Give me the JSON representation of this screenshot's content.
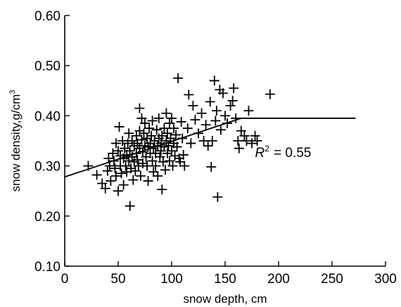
{
  "chart_data": {
    "type": "scatter",
    "xlabel": "snow depth, cm",
    "ylabel_main": "snow density,g/cm",
    "ylabel_sup": "3",
    "xlim": [
      0,
      300
    ],
    "ylim": [
      0.1,
      0.6
    ],
    "x_ticks": [
      0,
      50,
      100,
      150,
      200,
      250,
      300
    ],
    "x_tick_labels": [
      "0",
      "50",
      "100",
      "150",
      "200",
      "250",
      "300"
    ],
    "y_ticks": [
      0.1,
      0.2,
      0.3,
      0.4,
      0.5,
      0.6
    ],
    "y_tick_labels": [
      "0.10",
      "0.20",
      "0.30",
      "0.40",
      "0.50",
      "0.60"
    ],
    "grid": false,
    "marker": "plus",
    "annotation": {
      "r_label": "R",
      "r_sup": "2",
      "r_value": "= 0.55",
      "x": 178,
      "y": 0.318
    },
    "fit_line": {
      "type": "piecewise-linear",
      "points": [
        [
          0,
          0.278
        ],
        [
          165,
          0.395
        ],
        [
          272,
          0.395
        ]
      ]
    },
    "points": [
      [
        22,
        0.3
      ],
      [
        30,
        0.282
      ],
      [
        35,
        0.265
      ],
      [
        38,
        0.255
      ],
      [
        40,
        0.29
      ],
      [
        41,
        0.315
      ],
      [
        42,
        0.3
      ],
      [
        43,
        0.27
      ],
      [
        45,
        0.325
      ],
      [
        46,
        0.31
      ],
      [
        47,
        0.295
      ],
      [
        48,
        0.28
      ],
      [
        48,
        0.345
      ],
      [
        50,
        0.25
      ],
      [
        50,
        0.33
      ],
      [
        51,
        0.378
      ],
      [
        52,
        0.32
      ],
      [
        52,
        0.3
      ],
      [
        53,
        0.285
      ],
      [
        54,
        0.35
      ],
      [
        55,
        0.315
      ],
      [
        55,
        0.262
      ],
      [
        56,
        0.335
      ],
      [
        57,
        0.3
      ],
      [
        58,
        0.322
      ],
      [
        58,
        0.288
      ],
      [
        59,
        0.345
      ],
      [
        60,
        0.31
      ],
      [
        60,
        0.365
      ],
      [
        61,
        0.22
      ],
      [
        61,
        0.33
      ],
      [
        62,
        0.295
      ],
      [
        63,
        0.318
      ],
      [
        63,
        0.35
      ],
      [
        64,
        0.272
      ],
      [
        65,
        0.34
      ],
      [
        65,
        0.308
      ],
      [
        66,
        0.29
      ],
      [
        67,
        0.36
      ],
      [
        67,
        0.325
      ],
      [
        68,
        0.345
      ],
      [
        68,
        0.312
      ],
      [
        69,
        0.3
      ],
      [
        70,
        0.335
      ],
      [
        70,
        0.37
      ],
      [
        70,
        0.415
      ],
      [
        71,
        0.28
      ],
      [
        72,
        0.352
      ],
      [
        72,
        0.395
      ],
      [
        73,
        0.328
      ],
      [
        73,
        0.305
      ],
      [
        74,
        0.365
      ],
      [
        75,
        0.34
      ],
      [
        75,
        0.385
      ],
      [
        76,
        0.318
      ],
      [
        77,
        0.3
      ],
      [
        77,
        0.355
      ],
      [
        78,
        0.338
      ],
      [
        78,
        0.27
      ],
      [
        79,
        0.375
      ],
      [
        80,
        0.325
      ],
      [
        80,
        0.345
      ],
      [
        81,
        0.36
      ],
      [
        82,
        0.31
      ],
      [
        82,
        0.39
      ],
      [
        83,
        0.335
      ],
      [
        83,
        0.288
      ],
      [
        84,
        0.35
      ],
      [
        85,
        0.325
      ],
      [
        85,
        0.3
      ],
      [
        86,
        0.372
      ],
      [
        87,
        0.34
      ],
      [
        87,
        0.28
      ],
      [
        88,
        0.355
      ],
      [
        88,
        0.395
      ],
      [
        89,
        0.318
      ],
      [
        90,
        0.345
      ],
      [
        90,
        0.33
      ],
      [
        91,
        0.36
      ],
      [
        91,
        0.253
      ],
      [
        92,
        0.308
      ],
      [
        93,
        0.375
      ],
      [
        93,
        0.338
      ],
      [
        94,
        0.292
      ],
      [
        95,
        0.35
      ],
      [
        95,
        0.405
      ],
      [
        96,
        0.325
      ],
      [
        96,
        0.365
      ],
      [
        97,
        0.34
      ],
      [
        98,
        0.31
      ],
      [
        98,
        0.385
      ],
      [
        99,
        0.355
      ],
      [
        100,
        0.395
      ],
      [
        100,
        0.33
      ],
      [
        101,
        0.3
      ],
      [
        102,
        0.375
      ],
      [
        102,
        0.345
      ],
      [
        103,
        0.32
      ],
      [
        104,
        0.362
      ],
      [
        105,
        0.338
      ],
      [
        106,
        0.475
      ],
      [
        107,
        0.315
      ],
      [
        108,
        0.308
      ],
      [
        109,
        0.388
      ],
      [
        110,
        0.355
      ],
      [
        111,
        0.322
      ],
      [
        112,
        0.3
      ],
      [
        115,
        0.375
      ],
      [
        116,
        0.442
      ],
      [
        118,
        0.345
      ],
      [
        120,
        0.42
      ],
      [
        122,
        0.392
      ],
      [
        125,
        0.365
      ],
      [
        128,
        0.405
      ],
      [
        130,
        0.35
      ],
      [
        132,
        0.382
      ],
      [
        134,
        0.34
      ],
      [
        136,
        0.428
      ],
      [
        137,
        0.298
      ],
      [
        138,
        0.35
      ],
      [
        140,
        0.47
      ],
      [
        141,
        0.39
      ],
      [
        142,
        0.41
      ],
      [
        143,
        0.238
      ],
      [
        145,
        0.452
      ],
      [
        146,
        0.372
      ],
      [
        148,
        0.445
      ],
      [
        150,
        0.4
      ],
      [
        152,
        0.385
      ],
      [
        155,
        0.42
      ],
      [
        157,
        0.43
      ],
      [
        158,
        0.455
      ],
      [
        160,
        0.395
      ],
      [
        162,
        0.35
      ],
      [
        163,
        0.335
      ],
      [
        165,
        0.37
      ],
      [
        168,
        0.36
      ],
      [
        170,
        0.35
      ],
      [
        172,
        0.41
      ],
      [
        175,
        0.345
      ],
      [
        178,
        0.36
      ],
      [
        180,
        0.35
      ],
      [
        192,
        0.443
      ]
    ]
  }
}
